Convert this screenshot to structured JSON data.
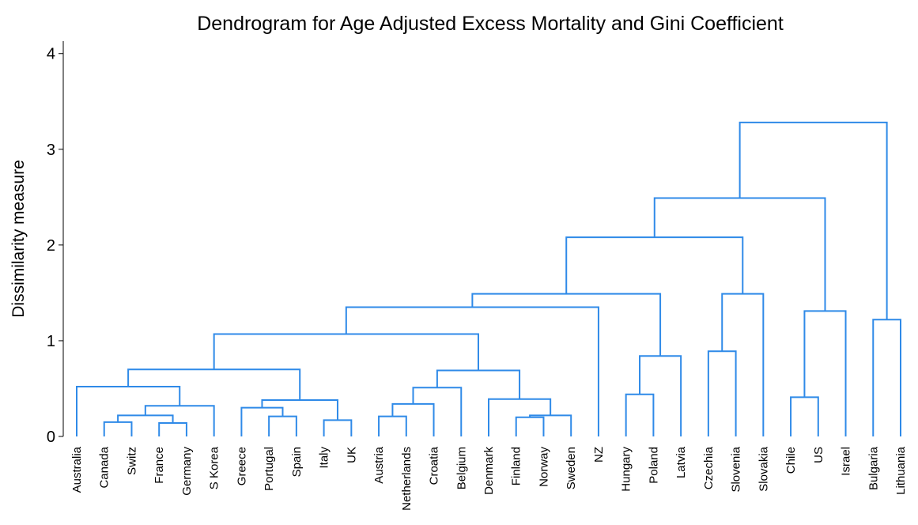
{
  "chart_data": {
    "type": "dendrogram",
    "title": "Dendrogram for Age Adjusted Excess Mortality and Gini Coefficient",
    "ylabel": "Dissimilarity measure",
    "leaves": [
      "Australia",
      "Canada",
      "Switz",
      "France",
      "Germany",
      "S Korea",
      "Greece",
      "Portugal",
      "Spain",
      "Italy",
      "UK",
      "Austria",
      "Netherlands",
      "Croatia",
      "Belgium",
      "Denmark",
      "Finland",
      "Norway",
      "Sweden",
      "NZ",
      "Hungary",
      "Poland",
      "Latvia",
      "Czechia",
      "Slovenia",
      "Slovakia",
      "Chile",
      "US",
      "Israel",
      "Bulgaria",
      "Lithuania"
    ],
    "merges": [
      [
        3,
        4,
        0.14
      ],
      [
        1,
        2,
        0.15
      ],
      [
        9,
        10,
        0.17
      ],
      [
        16,
        17,
        0.2
      ],
      [
        7,
        8,
        0.21
      ],
      [
        11,
        12,
        0.21
      ],
      [
        34,
        18,
        0.22
      ],
      [
        32,
        31,
        0.22
      ],
      [
        6,
        35,
        0.3
      ],
      [
        38,
        5,
        0.32
      ],
      [
        36,
        13,
        0.34
      ],
      [
        39,
        33,
        0.38
      ],
      [
        15,
        37,
        0.39
      ],
      [
        26,
        27,
        0.41
      ],
      [
        20,
        21,
        0.44
      ],
      [
        41,
        14,
        0.51
      ],
      [
        0,
        40,
        0.52
      ],
      [
        46,
        43,
        0.69
      ],
      [
        47,
        42,
        0.7
      ],
      [
        45,
        22,
        0.84
      ],
      [
        23,
        24,
        0.89
      ],
      [
        49,
        48,
        1.07
      ],
      [
        29,
        30,
        1.22
      ],
      [
        44,
        28,
        1.31
      ],
      [
        52,
        19,
        1.35
      ],
      [
        51,
        25,
        1.49
      ],
      [
        55,
        50,
        1.49
      ],
      [
        57,
        56,
        2.08
      ],
      [
        58,
        54,
        2.49
      ],
      [
        59,
        53,
        3.28
      ]
    ],
    "color": "#2f8ae8",
    "ylim": [
      0,
      4.13
    ],
    "yticks": [
      0,
      1,
      2,
      3,
      4
    ]
  }
}
